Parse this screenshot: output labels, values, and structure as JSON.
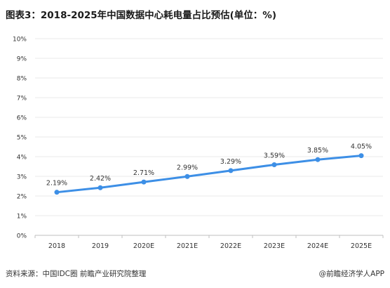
{
  "title": "图表3：2018-2025年中国数据中心耗电量占比预估(单位：%)",
  "source": "资料来源：中国IDC圈 前瞻产业研究院整理",
  "credit": "@前瞻经济学人APP",
  "colors": {
    "line": "#3d8fe6",
    "grid": "#e8e8e8",
    "axis": "#bfbfbf"
  },
  "chart_data": {
    "type": "line",
    "title": "图表3：2018-2025年中国数据中心耗电量占比预估(单位：%)",
    "categories": [
      "2018",
      "2019",
      "2020E",
      "2021E",
      "2022E",
      "2023E",
      "2024E",
      "2025E"
    ],
    "values": [
      2.19,
      2.42,
      2.71,
      2.99,
      3.29,
      3.59,
      3.85,
      4.05
    ],
    "data_labels": [
      "2.19%",
      "2.42%",
      "2.71%",
      "2.99%",
      "3.29%",
      "3.59%",
      "3.85%",
      "4.05%"
    ],
    "yticks": [
      "0%",
      "1%",
      "2%",
      "3%",
      "4%",
      "5%",
      "6%",
      "7%",
      "8%",
      "9%",
      "10%"
    ],
    "ylim": [
      0,
      10
    ],
    "grid": true,
    "xlabel": "",
    "ylabel": ""
  }
}
